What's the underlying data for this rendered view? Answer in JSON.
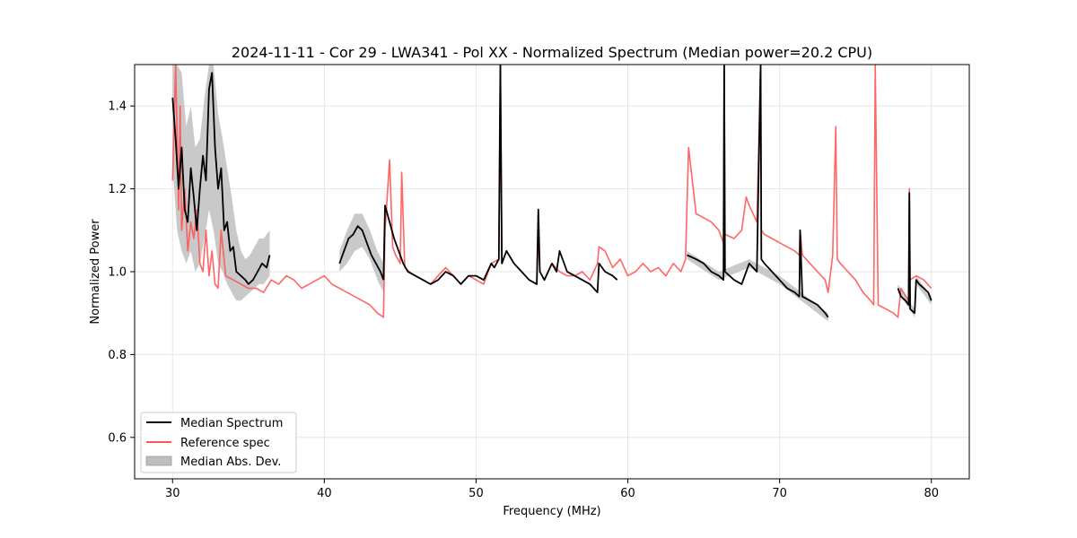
{
  "chart_data": {
    "type": "line",
    "title": "2024-11-11 - Cor 29 - LWA341 - Pol XX - Normalized Spectrum (Median power=20.2 CPU)",
    "xlabel": "Frequency (MHz)",
    "ylabel": "Normalized Power",
    "xlim": [
      27.5,
      82.5
    ],
    "ylim": [
      0.5,
      1.5
    ],
    "xticks": [
      30,
      40,
      50,
      60,
      70,
      80
    ],
    "yticks": [
      0.6,
      0.8,
      1.0,
      1.2,
      1.4
    ],
    "xtick_labels": [
      "30",
      "40",
      "50",
      "60",
      "70",
      "80"
    ],
    "ytick_labels": [
      "0.6",
      "0.8",
      "1.0",
      "1.2",
      "1.4"
    ],
    "grid": true,
    "legend_position": "lower-left",
    "colors": {
      "median": "#000000",
      "reference": "#ff5555",
      "mad": "#bfbfbf"
    },
    "legend": [
      "Median Spectrum",
      "Reference spec",
      "Median Abs. Dev."
    ],
    "series": [
      {
        "name": "Median Spectrum",
        "segments": [
          {
            "x": [
              30.0,
              30.2,
              30.4,
              30.6,
              30.8,
              31.0,
              31.2,
              31.4,
              31.6,
              31.8,
              32.0,
              32.2,
              32.4,
              32.6,
              32.8,
              33.0,
              33.2,
              33.4,
              33.6,
              33.8,
              34.0,
              34.2,
              34.5,
              34.8,
              35.0,
              35.3,
              35.6,
              35.9,
              36.2,
              36.4
            ],
            "y": [
              1.42,
              1.32,
              1.2,
              1.3,
              1.15,
              1.12,
              1.25,
              1.18,
              1.1,
              1.2,
              1.28,
              1.22,
              1.44,
              1.48,
              1.3,
              1.2,
              1.25,
              1.1,
              1.12,
              1.05,
              1.06,
              1.0,
              0.99,
              0.98,
              0.97,
              0.98,
              1.0,
              1.02,
              1.01,
              1.04
            ]
          },
          {
            "x": [
              41.0,
              41.3,
              41.6,
              41.9,
              42.2,
              42.5,
              42.8,
              43.1,
              43.4,
              43.7,
              43.9
            ],
            "y": [
              1.02,
              1.05,
              1.08,
              1.09,
              1.11,
              1.1,
              1.07,
              1.04,
              1.02,
              1.0,
              0.98
            ]
          },
          {
            "x": [
              43.9,
              44.0,
              44.3,
              44.6,
              44.9,
              45.2,
              45.5,
              46.0,
              46.5,
              47.0,
              47.5,
              48.0,
              48.5,
              49.0,
              49.5,
              50.0,
              50.5,
              51.0,
              51.2,
              51.5,
              51.6,
              51.7,
              52.0,
              52.5,
              53.0,
              53.5,
              54.0,
              54.1,
              54.2,
              54.5,
              55.0,
              55.3,
              55.5,
              56.0,
              56.5,
              57.0,
              57.5,
              58.0,
              58.1,
              58.3,
              58.5,
              59.0,
              59.3
            ],
            "y": [
              0.98,
              1.16,
              1.12,
              1.08,
              1.05,
              1.02,
              1.0,
              0.99,
              0.98,
              0.97,
              0.98,
              1.0,
              0.99,
              0.97,
              0.99,
              0.99,
              0.98,
              1.02,
              1.01,
              1.03,
              1.5,
              1.02,
              1.05,
              1.02,
              1.0,
              0.98,
              0.97,
              1.15,
              1.0,
              0.98,
              1.02,
              1.0,
              1.05,
              1.0,
              0.99,
              0.98,
              0.97,
              0.95,
              1.02,
              1.01,
              1.0,
              0.99,
              0.98
            ]
          },
          {
            "x": [
              63.9,
              64.5,
              65.0,
              65.5,
              66.0,
              66.3,
              66.35,
              66.4,
              67.0,
              67.5,
              68.0,
              68.5,
              68.75,
              68.8,
              69.0,
              69.5,
              70.0,
              70.5,
              71.0,
              71.3,
              71.35,
              71.5,
              72.0,
              72.5,
              73.0,
              73.2
            ],
            "y": [
              1.04,
              1.03,
              1.02,
              1.0,
              0.99,
              0.98,
              1.5,
              1.0,
              0.98,
              0.97,
              1.02,
              1.0,
              1.5,
              1.03,
              1.02,
              1.0,
              0.98,
              0.96,
              0.95,
              0.94,
              1.1,
              0.94,
              0.93,
              0.92,
              0.9,
              0.89
            ]
          },
          {
            "x": [
              77.8,
              78.0,
              78.3,
              78.5,
              78.55,
              78.6,
              78.9,
              79.0,
              79.2,
              79.5,
              79.8,
              80.0
            ],
            "y": [
              0.96,
              0.94,
              0.93,
              0.92,
              1.19,
              0.91,
              0.9,
              0.98,
              0.97,
              0.96,
              0.95,
              0.93
            ]
          }
        ]
      },
      {
        "name": "Reference spec",
        "segments": [
          {
            "x": [
              30.0,
              30.2,
              30.4,
              30.5,
              30.6,
              30.8,
              31.0,
              31.2,
              31.4,
              31.6,
              31.8,
              32.0,
              32.2,
              32.4,
              32.6,
              32.8,
              33.0,
              33.2,
              33.5,
              34.0,
              34.5,
              35.0,
              35.5,
              36.0,
              36.5,
              37.0,
              37.5,
              38.0,
              38.5,
              39.0,
              39.5,
              40.0,
              40.5,
              41.0,
              41.5,
              42.0,
              42.5,
              43.0,
              43.5,
              43.9,
              44.0,
              44.3,
              44.5,
              44.7,
              45.0,
              45.1,
              45.3,
              45.6,
              46.0,
              46.5,
              47.0,
              47.5,
              48.0,
              48.5,
              49.0,
              49.5,
              50.0,
              50.5,
              51.0,
              51.5,
              51.6,
              51.7,
              52.0,
              52.5,
              53.0,
              53.5,
              54.0,
              54.1,
              54.2,
              54.5,
              55.0,
              55.5,
              56.0,
              56.5,
              57.0,
              57.5,
              58.0,
              58.1,
              58.5,
              59.0,
              59.5,
              60.0,
              60.5,
              61.0,
              61.5,
              62.0,
              62.5,
              63.0,
              63.5,
              63.8,
              64.0,
              64.5,
              65.0,
              65.5,
              66.0,
              66.3,
              66.35,
              66.4,
              67.0,
              67.5,
              67.8,
              68.0,
              68.5,
              68.75,
              68.8,
              69.0,
              69.5,
              70.0,
              70.5,
              71.0,
              71.3,
              71.35,
              71.5,
              72.0,
              72.5,
              73.0,
              73.2,
              73.5,
              73.7,
              73.8,
              74.0,
              74.5,
              75.0,
              75.5,
              76.0,
              76.2,
              76.3,
              76.5,
              77.0,
              77.5,
              77.8,
              78.0,
              78.5,
              78.55,
              78.6,
              79.0,
              79.5,
              80.0
            ],
            "y": [
              1.22,
              1.5,
              1.15,
              1.4,
              1.1,
              1.2,
              1.05,
              1.12,
              1.08,
              1.15,
              1.02,
              1.0,
              1.1,
              0.99,
              1.05,
              0.97,
              0.96,
              1.1,
              0.99,
              0.98,
              0.97,
              0.96,
              0.96,
              0.95,
              0.98,
              0.97,
              0.99,
              0.98,
              0.96,
              0.97,
              0.98,
              0.99,
              0.97,
              0.96,
              0.95,
              0.94,
              0.93,
              0.92,
              0.9,
              0.89,
              1.1,
              1.27,
              1.06,
              1.04,
              1.02,
              1.24,
              1.01,
              1.0,
              0.99,
              0.98,
              0.97,
              0.99,
              1.01,
              0.99,
              0.97,
              0.99,
              0.98,
              0.97,
              1.02,
              1.03,
              1.5,
              1.02,
              1.05,
              1.02,
              1.0,
              0.98,
              0.97,
              1.1,
              1.0,
              0.98,
              1.02,
              1.0,
              0.99,
              0.99,
              1.0,
              0.98,
              1.02,
              1.06,
              1.05,
              1.01,
              1.03,
              0.99,
              1.0,
              1.02,
              1.0,
              1.01,
              0.99,
              1.02,
              1.0,
              1.03,
              1.3,
              1.14,
              1.13,
              1.12,
              1.1,
              1.07,
              1.5,
              1.09,
              1.08,
              1.1,
              1.18,
              1.16,
              1.12,
              1.5,
              1.1,
              1.09,
              1.08,
              1.07,
              1.06,
              1.05,
              1.04,
              1.1,
              1.04,
              1.02,
              1.0,
              0.98,
              0.95,
              1.04,
              1.35,
              1.03,
              1.02,
              1.0,
              0.98,
              0.95,
              0.93,
              0.92,
              1.5,
              0.92,
              0.91,
              0.9,
              0.89,
              0.96,
              0.93,
              1.2,
              0.98,
              0.99,
              0.98,
              0.96
            ]
          }
        ]
      },
      {
        "name": "Median Abs. Dev.",
        "segments": [
          {
            "x": [
              30.0,
              30.3,
              30.6,
              30.9,
              31.2,
              31.5,
              31.8,
              32.1,
              32.4,
              32.7,
              33.0,
              33.3,
              33.6,
              33.9,
              34.2,
              34.5,
              34.8,
              35.1,
              35.4,
              35.7,
              36.0,
              36.4
            ],
            "upper": [
              1.5,
              1.5,
              1.48,
              1.35,
              1.4,
              1.3,
              1.32,
              1.42,
              1.5,
              1.5,
              1.38,
              1.32,
              1.25,
              1.18,
              1.1,
              1.05,
              1.03,
              1.04,
              1.06,
              1.08,
              1.08,
              1.1
            ],
            "lower": [
              1.25,
              1.1,
              1.05,
              1.02,
              1.05,
              1.0,
              1.02,
              1.08,
              1.15,
              1.1,
              1.02,
              1.0,
              0.97,
              0.95,
              0.93,
              0.93,
              0.94,
              0.95,
              0.96,
              0.97,
              0.97,
              0.99
            ]
          },
          {
            "x": [
              41.0,
              41.5,
              42.0,
              42.5,
              43.0,
              43.5,
              43.9
            ],
            "upper": [
              1.05,
              1.1,
              1.14,
              1.14,
              1.1,
              1.05,
              1.02
            ],
            "lower": [
              1.0,
              1.02,
              1.05,
              1.06,
              1.03,
              0.98,
              0.95
            ]
          },
          {
            "x": [
              63.9,
              66.0,
              68.0,
              70.0,
              73.2
            ],
            "upper": [
              1.05,
              1.0,
              1.03,
              0.99,
              0.9
            ],
            "lower": [
              1.03,
              0.98,
              1.01,
              0.97,
              0.88
            ]
          },
          {
            "x": [
              77.8,
              78.9,
              79.0,
              80.0
            ],
            "upper": [
              0.97,
              0.91,
              0.99,
              0.94
            ],
            "lower": [
              0.95,
              0.89,
              0.97,
              0.92
            ]
          }
        ]
      }
    ]
  }
}
